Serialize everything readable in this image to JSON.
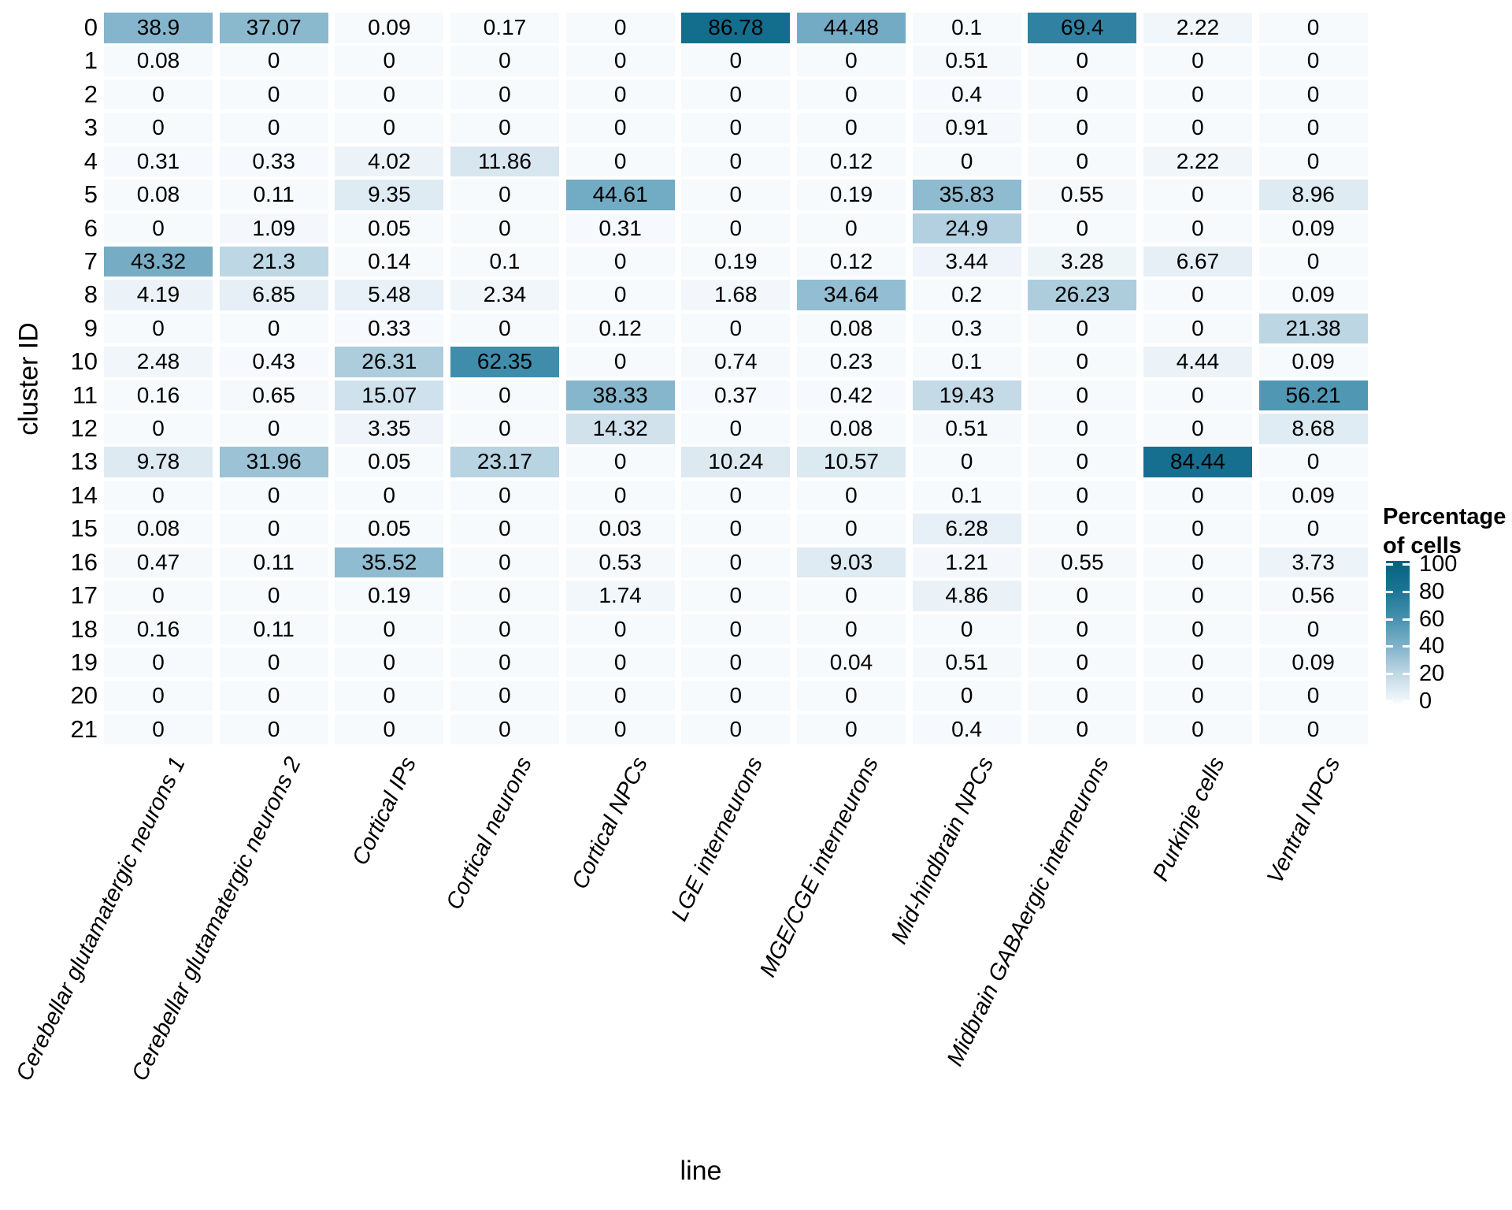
{
  "chart_data": {
    "type": "heatmap",
    "xlabel": "line",
    "ylabel": "cluster ID",
    "x_categories": [
      "Cerebellar glutamatergic neurons 1",
      "Cerebellar glutamatergic neurons 2",
      "Cortical IPs",
      "Cortical neurons",
      "Cortical NPCs",
      "LGE interneurons",
      "MGE/CGE interneurons",
      "Mid-hindbrain NPCs",
      "Midbrain GABAergic interneurons",
      "Purkinje cells",
      "Ventral NPCs"
    ],
    "y_categories": [
      "0",
      "1",
      "2",
      "3",
      "4",
      "5",
      "6",
      "7",
      "8",
      "9",
      "10",
      "11",
      "12",
      "13",
      "14",
      "15",
      "16",
      "17",
      "18",
      "19",
      "20",
      "21"
    ],
    "values": [
      [
        38.9,
        37.07,
        0.09,
        0.17,
        0,
        86.78,
        44.48,
        0.1,
        69.4,
        2.22,
        0
      ],
      [
        0.08,
        0,
        0,
        0,
        0,
        0,
        0,
        0.51,
        0,
        0,
        0
      ],
      [
        0,
        0,
        0,
        0,
        0,
        0,
        0,
        0.4,
        0,
        0,
        0
      ],
      [
        0,
        0,
        0,
        0,
        0,
        0,
        0,
        0.91,
        0,
        0,
        0
      ],
      [
        0.31,
        0.33,
        4.02,
        11.86,
        0,
        0,
        0.12,
        0,
        0,
        2.22,
        0
      ],
      [
        0.08,
        0.11,
        9.35,
        0,
        44.61,
        0,
        0.19,
        35.83,
        0.55,
        0,
        8.96
      ],
      [
        0,
        1.09,
        0.05,
        0,
        0.31,
        0,
        0,
        24.9,
        0,
        0,
        0.09
      ],
      [
        43.32,
        21.3,
        0.14,
        0.1,
        0,
        0.19,
        0.12,
        3.44,
        3.28,
        6.67,
        0
      ],
      [
        4.19,
        6.85,
        5.48,
        2.34,
        0,
        1.68,
        34.64,
        0.2,
        26.23,
        0,
        0.09
      ],
      [
        0,
        0,
        0.33,
        0,
        0.12,
        0,
        0.08,
        0.3,
        0,
        0,
        21.38
      ],
      [
        2.48,
        0.43,
        26.31,
        62.35,
        0,
        0.74,
        0.23,
        0.1,
        0,
        4.44,
        0.09
      ],
      [
        0.16,
        0.65,
        15.07,
        0,
        38.33,
        0.37,
        0.42,
        19.43,
        0,
        0,
        56.21
      ],
      [
        0,
        0,
        3.35,
        0,
        14.32,
        0,
        0.08,
        0.51,
        0,
        0,
        8.68
      ],
      [
        9.78,
        31.96,
        0.05,
        23.17,
        0,
        10.24,
        10.57,
        0,
        0,
        84.44,
        0
      ],
      [
        0,
        0,
        0,
        0,
        0,
        0,
        0,
        0.1,
        0,
        0,
        0.09
      ],
      [
        0.08,
        0,
        0.05,
        0,
        0.03,
        0,
        0,
        6.28,
        0,
        0,
        0
      ],
      [
        0.47,
        0.11,
        35.52,
        0,
        0.53,
        0,
        9.03,
        1.21,
        0.55,
        0,
        3.73
      ],
      [
        0,
        0,
        0.19,
        0,
        1.74,
        0,
        0,
        4.86,
        0,
        0,
        0.56
      ],
      [
        0.16,
        0.11,
        0,
        0,
        0,
        0,
        0,
        0,
        0,
        0,
        0
      ],
      [
        0,
        0,
        0,
        0,
        0,
        0,
        0.04,
        0.51,
        0,
        0,
        0.09
      ],
      [
        0,
        0,
        0,
        0,
        0,
        0,
        0,
        0,
        0,
        0,
        0
      ],
      [
        0,
        0,
        0,
        0,
        0,
        0,
        0,
        0.4,
        0,
        0,
        0
      ]
    ],
    "value_range": [
      0,
      100
    ],
    "grid": false,
    "legend": {
      "position": "right",
      "title_line1": "Percentage",
      "title_line2": "of cells",
      "ticks": [
        100,
        80,
        60,
        40,
        20,
        0
      ]
    },
    "colorscale_stops": [
      [
        0,
        "#f7fafd"
      ],
      [
        20,
        "#c2d9e6"
      ],
      [
        40,
        "#80b3ca"
      ],
      [
        60,
        "#4590ae"
      ],
      [
        80,
        "#1a7394"
      ],
      [
        100,
        "#06617f"
      ]
    ]
  }
}
